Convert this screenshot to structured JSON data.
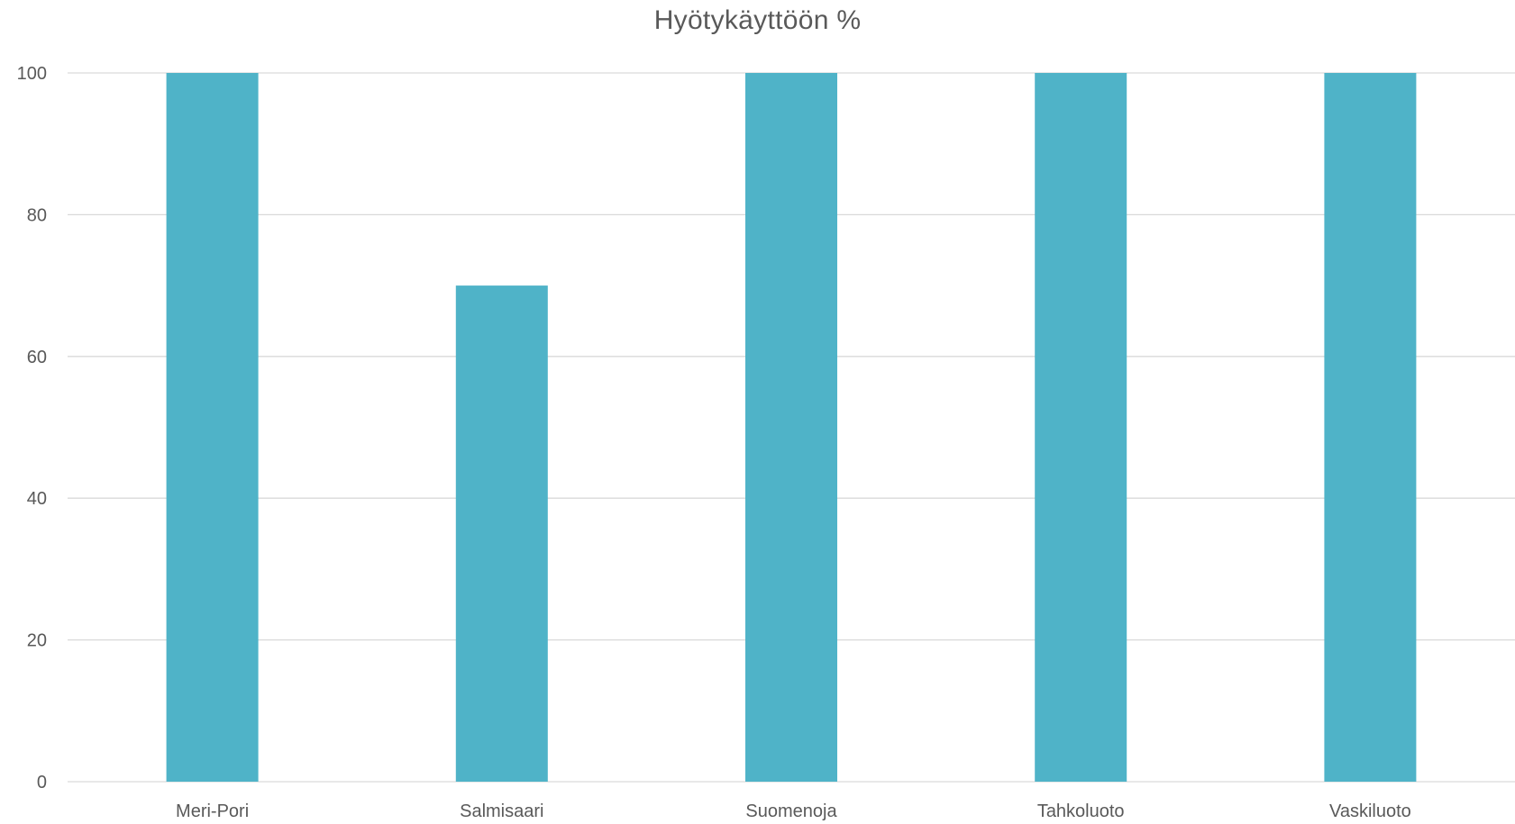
{
  "chart_data": {
    "type": "bar",
    "title": "Hyötykäyttöön %",
    "categories": [
      "Meri-Pori",
      "Salmisaari",
      "Suomenoja",
      "Tahkoluoto",
      "Vaskiluoto"
    ],
    "values": [
      100,
      70,
      100,
      100,
      100
    ],
    "xlabel": "",
    "ylabel": "",
    "ylim": [
      0,
      100
    ],
    "yticks": [
      0,
      20,
      40,
      60,
      80,
      100
    ],
    "grid": true,
    "legend": "none",
    "bar_color": "#4FB3C8",
    "grid_color": "#D9D9D9",
    "text_color": "#595959"
  }
}
